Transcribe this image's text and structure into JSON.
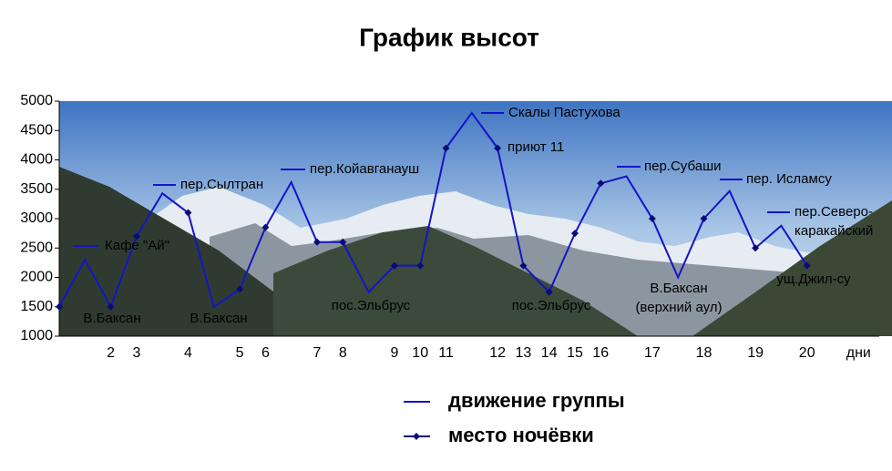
{
  "chart_data": {
    "type": "line",
    "title": "График высот",
    "categories": [
      null,
      null,
      "2",
      "3",
      null,
      "4",
      null,
      "5",
      "6",
      null,
      "7",
      "8",
      null,
      "9",
      "10",
      "11",
      null,
      "12",
      "13",
      "14",
      "15",
      "16",
      null,
      "17",
      null,
      "18",
      null,
      "19",
      null,
      "20",
      null,
      "дни"
    ],
    "series": [
      {
        "name": "движение группы",
        "color": "#1414c8",
        "style": "line",
        "values": [
          1500,
          2300,
          1500,
          2700,
          3430,
          3100,
          1500,
          1800,
          2850,
          3620,
          2600,
          2600,
          1750,
          2200,
          2200,
          4200,
          4800,
          4200,
          2200,
          1750,
          2750,
          3600,
          3720,
          3000,
          2000,
          3000,
          3470,
          2500,
          2880,
          2200,
          null,
          null
        ]
      },
      {
        "name": "место ночёвки",
        "color": "#0a0a78",
        "style": "marker",
        "values": [
          1500,
          null,
          1500,
          2700,
          null,
          3100,
          null,
          1800,
          2850,
          null,
          2600,
          2600,
          null,
          2200,
          2200,
          4200,
          null,
          4200,
          2200,
          1750,
          2750,
          3600,
          null,
          3000,
          null,
          3000,
          null,
          2500,
          null,
          2200,
          null,
          null
        ]
      }
    ],
    "ylim": [
      1000,
      5000
    ],
    "yticks": [
      1000,
      1500,
      2000,
      2500,
      3000,
      3500,
      4000,
      4500,
      5000
    ],
    "grid": false,
    "annotations": [
      {
        "text": [
          "Кафе \"Ай\""
        ]
      },
      {
        "text": [
          "В.Баксан"
        ]
      },
      {
        "text": [
          "пер.Сылтран"
        ]
      },
      {
        "text": [
          "В.Баксан"
        ]
      },
      {
        "text": [
          "пер.Койавганауш"
        ]
      },
      {
        "text": [
          "пос.Эльбрус"
        ]
      },
      {
        "text": [
          "Скалы Пастухова"
        ]
      },
      {
        "text": [
          "приют 11"
        ]
      },
      {
        "text": [
          "пос.Эльбрус"
        ]
      },
      {
        "text": [
          "пер.Субаши"
        ]
      },
      {
        "text": [
          "В.Баксан",
          "(верхний аул)"
        ]
      },
      {
        "text": [
          "пер. Исламсу"
        ]
      },
      {
        "text": [
          "пер.Северо-",
          "каракайский"
        ]
      },
      {
        "text": [
          "ущ.Джил-су"
        ]
      }
    ]
  }
}
